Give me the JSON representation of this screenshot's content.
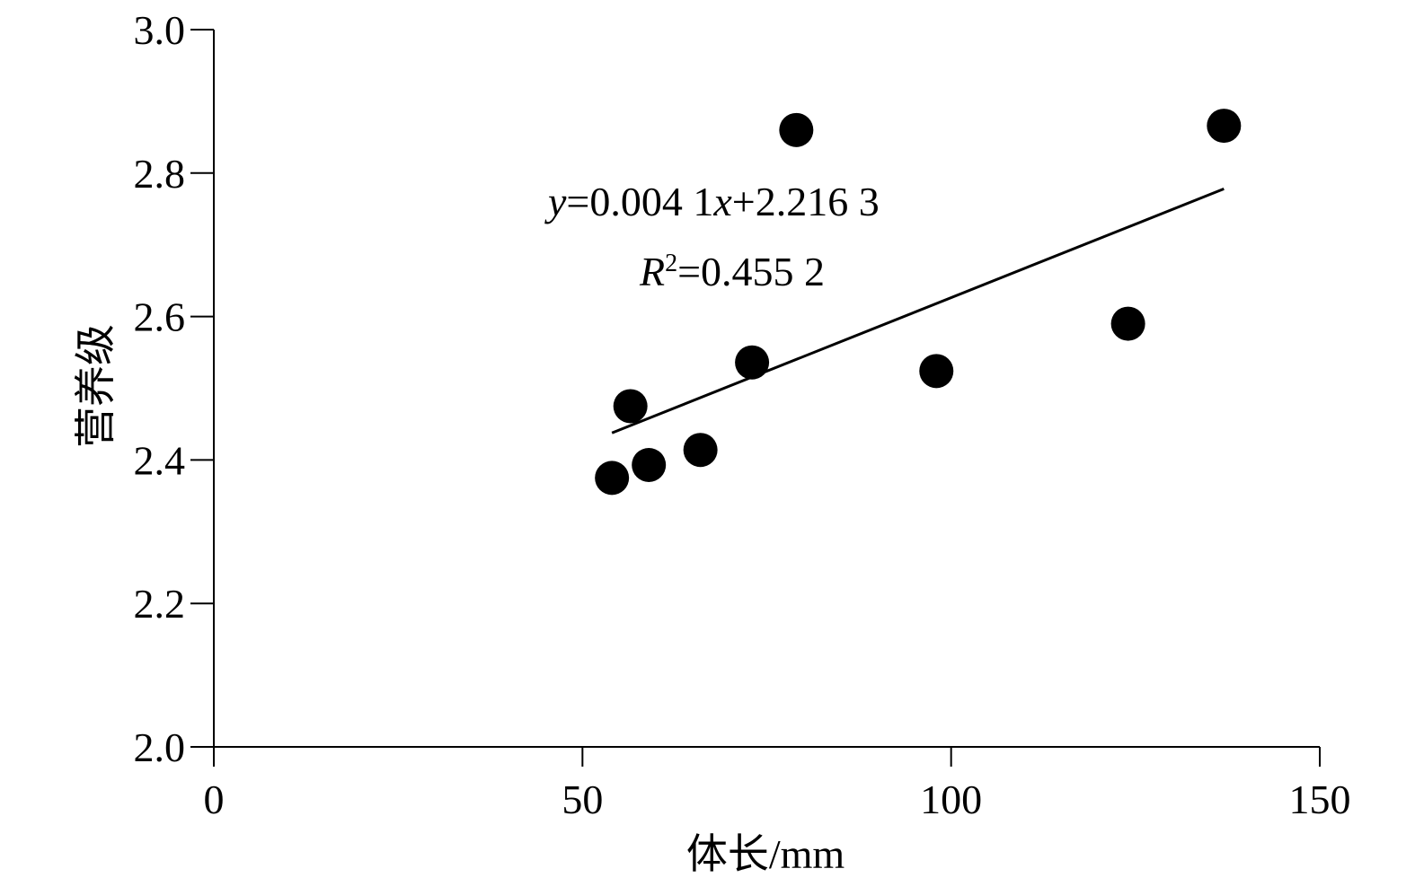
{
  "chart_data": {
    "type": "scatter",
    "title": "",
    "xlabel": "体长/mm",
    "ylabel": "营养级",
    "xlim": [
      0,
      150
    ],
    "ylim": [
      2.0,
      3.0
    ],
    "x_ticks": [
      "0",
      "50",
      "100",
      "150"
    ],
    "y_ticks": [
      "2.0",
      "2.2",
      "2.4",
      "2.6",
      "2.8",
      "3.0"
    ],
    "grid": false,
    "legend": "none",
    "series": [
      {
        "points": [
          {
            "x": 54,
            "y": 2.375
          },
          {
            "x": 56.5,
            "y": 2.475
          },
          {
            "x": 59,
            "y": 2.393
          },
          {
            "x": 66,
            "y": 2.414
          },
          {
            "x": 73,
            "y": 2.536
          },
          {
            "x": 79,
            "y": 2.86
          },
          {
            "x": 98,
            "y": 2.524
          },
          {
            "x": 124,
            "y": 2.59
          },
          {
            "x": 137,
            "y": 2.866
          }
        ],
        "color": "#000000"
      }
    ],
    "trendline": {
      "slope": 0.0041,
      "intercept": 2.2163,
      "x_range": [
        54,
        137
      ]
    },
    "annotations": {
      "equation": {
        "var_y": "y",
        "eq1": "=0.004 1",
        "var_x": "x",
        "eq2": "+2.216 3"
      },
      "r_squared": {
        "var": "R",
        "sup": "2",
        "value": "=0.455 2"
      }
    }
  }
}
